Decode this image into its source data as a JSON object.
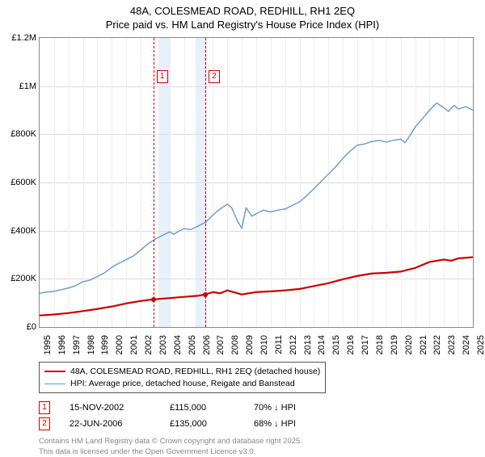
{
  "title_line1": "48A, COLESMEAD ROAD, REDHILL, RH1 2EQ",
  "title_line2": "Price paid vs. HM Land Registry's House Price Index (HPI)",
  "chart": {
    "type": "line",
    "x_start_year": 1995,
    "x_end_year": 2025,
    "xtick_years": [
      1995,
      1996,
      1997,
      1998,
      1999,
      2000,
      2001,
      2002,
      2003,
      2004,
      2005,
      2006,
      2007,
      2008,
      2009,
      2010,
      2011,
      2012,
      2013,
      2014,
      2015,
      2016,
      2017,
      2018,
      2019,
      2020,
      2021,
      2022,
      2023,
      2024,
      2025
    ],
    "ylim": [
      0,
      1200000
    ],
    "yticks": [
      {
        "v": 0,
        "label": "£0"
      },
      {
        "v": 200000,
        "label": "£200K"
      },
      {
        "v": 400000,
        "label": "£400K"
      },
      {
        "v": 600000,
        "label": "£600K"
      },
      {
        "v": 800000,
        "label": "£800K"
      },
      {
        "v": 1000000,
        "label": "£1M"
      },
      {
        "v": 1200000,
        "label": "£1.2M"
      }
    ],
    "background_color": "#ffffff",
    "grid_color": "#dddddd",
    "grid_minor_color": "#eeeeee",
    "shaded_bands": [
      {
        "from_year": 2003.2,
        "to_year": 2004.0,
        "color": "#e8f0fa"
      },
      {
        "from_year": 2005.8,
        "to_year": 2006.6,
        "color": "#e8f0fa"
      }
    ],
    "event_lines": [
      {
        "year": 2002.87,
        "label": "1"
      },
      {
        "year": 2006.47,
        "label": "2"
      }
    ],
    "series": [
      {
        "name": "property",
        "color": "#cc0000",
        "width": 2.2,
        "points": [
          [
            1995,
            48000
          ],
          [
            1996,
            52000
          ],
          [
            1997,
            58000
          ],
          [
            1998,
            66000
          ],
          [
            1999,
            75000
          ],
          [
            2000,
            85000
          ],
          [
            2001,
            98000
          ],
          [
            2002,
            108000
          ],
          [
            2002.87,
            115000
          ],
          [
            2003,
            115000
          ],
          [
            2004,
            120000
          ],
          [
            2005,
            125000
          ],
          [
            2006,
            130000
          ],
          [
            2006.47,
            135000
          ],
          [
            2007,
            145000
          ],
          [
            2007.5,
            140000
          ],
          [
            2008,
            152000
          ],
          [
            2009,
            135000
          ],
          [
            2010,
            145000
          ],
          [
            2011,
            148000
          ],
          [
            2012,
            152000
          ],
          [
            2013,
            158000
          ],
          [
            2014,
            170000
          ],
          [
            2015,
            182000
          ],
          [
            2016,
            198000
          ],
          [
            2017,
            212000
          ],
          [
            2018,
            222000
          ],
          [
            2019,
            225000
          ],
          [
            2020,
            230000
          ],
          [
            2021,
            245000
          ],
          [
            2022,
            270000
          ],
          [
            2023,
            280000
          ],
          [
            2023.5,
            275000
          ],
          [
            2024,
            285000
          ],
          [
            2025,
            290000
          ]
        ],
        "markers": [
          {
            "year": 2002.87,
            "value": 115000
          },
          {
            "year": 2006.47,
            "value": 135000
          }
        ]
      },
      {
        "name": "hpi",
        "color": "#6699cc",
        "width": 1.4,
        "points": [
          [
            1995,
            140000
          ],
          [
            1995.5,
            145000
          ],
          [
            1996,
            148000
          ],
          [
            1996.5,
            155000
          ],
          [
            1997,
            162000
          ],
          [
            1997.5,
            172000
          ],
          [
            1998,
            188000
          ],
          [
            1998.5,
            195000
          ],
          [
            1999,
            210000
          ],
          [
            1999.5,
            225000
          ],
          [
            2000,
            248000
          ],
          [
            2000.5,
            265000
          ],
          [
            2001,
            280000
          ],
          [
            2001.5,
            295000
          ],
          [
            2002,
            320000
          ],
          [
            2002.5,
            345000
          ],
          [
            2003,
            365000
          ],
          [
            2003.5,
            380000
          ],
          [
            2004,
            395000
          ],
          [
            2004.3,
            385000
          ],
          [
            2004.7,
            400000
          ],
          [
            2005,
            408000
          ],
          [
            2005.5,
            405000
          ],
          [
            2006,
            420000
          ],
          [
            2006.5,
            435000
          ],
          [
            2007,
            465000
          ],
          [
            2007.5,
            490000
          ],
          [
            2008,
            510000
          ],
          [
            2008.3,
            495000
          ],
          [
            2008.7,
            440000
          ],
          [
            2009,
            410000
          ],
          [
            2009.3,
            495000
          ],
          [
            2009.7,
            460000
          ],
          [
            2010,
            470000
          ],
          [
            2010.5,
            485000
          ],
          [
            2011,
            478000
          ],
          [
            2011.5,
            485000
          ],
          [
            2012,
            490000
          ],
          [
            2012.5,
            505000
          ],
          [
            2013,
            520000
          ],
          [
            2013.5,
            545000
          ],
          [
            2014,
            575000
          ],
          [
            2014.5,
            605000
          ],
          [
            2015,
            635000
          ],
          [
            2015.5,
            665000
          ],
          [
            2016,
            700000
          ],
          [
            2016.5,
            730000
          ],
          [
            2017,
            755000
          ],
          [
            2017.5,
            760000
          ],
          [
            2018,
            770000
          ],
          [
            2018.5,
            775000
          ],
          [
            2019,
            768000
          ],
          [
            2019.5,
            775000
          ],
          [
            2020,
            780000
          ],
          [
            2020.3,
            765000
          ],
          [
            2020.7,
            800000
          ],
          [
            2021,
            830000
          ],
          [
            2021.5,
            865000
          ],
          [
            2022,
            900000
          ],
          [
            2022.5,
            930000
          ],
          [
            2023,
            910000
          ],
          [
            2023.3,
            895000
          ],
          [
            2023.7,
            920000
          ],
          [
            2024,
            905000
          ],
          [
            2024.5,
            915000
          ],
          [
            2025,
            900000
          ]
        ]
      }
    ]
  },
  "legend": {
    "items": [
      {
        "color": "#cc0000",
        "width": 2.2,
        "label": "48A, COLESMEAD ROAD, REDHILL, RH1 2EQ (detached house)"
      },
      {
        "color": "#6699cc",
        "width": 1.4,
        "label": "HPI: Average price, detached house, Reigate and Banstead"
      }
    ]
  },
  "events": [
    {
      "n": "1",
      "date": "15-NOV-2002",
      "price": "£115,000",
      "delta": "70% ↓ HPI"
    },
    {
      "n": "2",
      "date": "22-JUN-2006",
      "price": "£135,000",
      "delta": "68% ↓ HPI"
    }
  ],
  "footer": {
    "line1": "Contains HM Land Registry data © Crown copyright and database right 2025.",
    "line2": "This data is licensed under the Open Government Licence v3.0."
  }
}
